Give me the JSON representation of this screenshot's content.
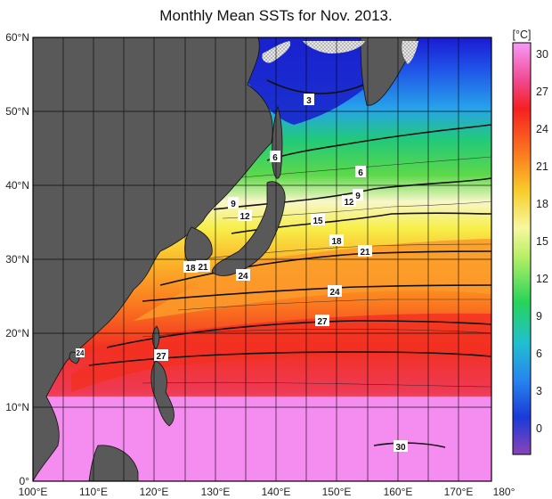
{
  "title": "Monthly Mean SSTs for Nov. 2013.",
  "lat_labels": [
    "60°N",
    "50°N",
    "40°N",
    "30°N",
    "20°N",
    "10°N",
    "0°"
  ],
  "lon_labels": [
    "100°E",
    "110°E",
    "120°E",
    "130°E",
    "140°E",
    "150°E",
    "160°E",
    "170°E",
    "180°"
  ],
  "colorbar": {
    "unit": "[°C]",
    "ticks": [
      "30",
      "27",
      "24",
      "21",
      "18",
      "15",
      "12",
      "9",
      "6",
      "3",
      "0"
    ]
  },
  "contour_labels": [
    "3",
    "6",
    "6",
    "9",
    "12",
    "12",
    "9",
    "15",
    "18",
    "21",
    "18",
    "21",
    "24",
    "24",
    "27",
    "27",
    "30",
    "24"
  ],
  "colors": {
    "land": "#595959",
    "ice": "#d8d8d8",
    "frame": "#000000"
  }
}
